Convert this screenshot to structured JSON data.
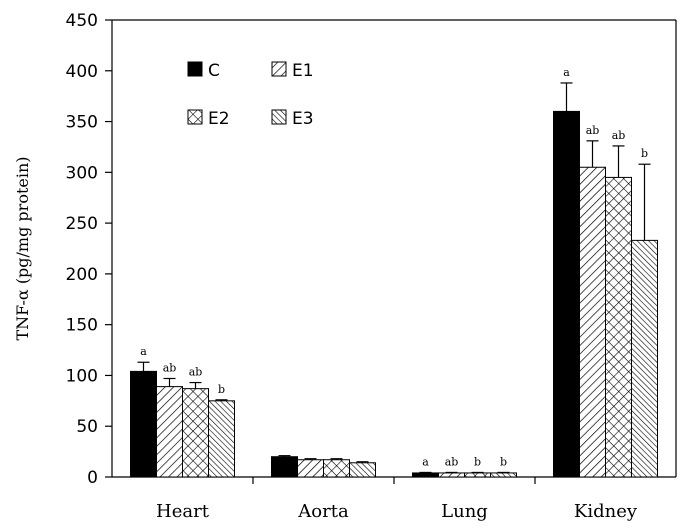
{
  "chart_data": {
    "type": "bar",
    "title": "",
    "xlabel": "",
    "ylabel": "TNF-α (pg/mg protein)",
    "ylim": [
      0,
      450
    ],
    "yticks": [
      0,
      50,
      100,
      150,
      200,
      250,
      300,
      350,
      400,
      450
    ],
    "grid": false,
    "legend_position": "top-left",
    "categories": [
      "Heart",
      "Aorta",
      "Lung",
      "Kidney"
    ],
    "series": [
      {
        "name": "C",
        "fill": "solid",
        "color": "#000000",
        "values": [
          104,
          20,
          4,
          360
        ],
        "errors": [
          9,
          1,
          0.5,
          28
        ],
        "labels": [
          "a",
          "",
          "a",
          "a"
        ]
      },
      {
        "name": "E1",
        "fill": "diagonal",
        "color": "#000000",
        "values": [
          89,
          17,
          4,
          305
        ],
        "errors": [
          8,
          1,
          0.5,
          26
        ],
        "labels": [
          "ab",
          "",
          "ab",
          "ab"
        ]
      },
      {
        "name": "E2",
        "fill": "crosshatch",
        "color": "#000000",
        "values": [
          87,
          17,
          4,
          295
        ],
        "errors": [
          6,
          1,
          0.5,
          31
        ],
        "labels": [
          "ab",
          "",
          "b",
          "ab"
        ]
      },
      {
        "name": "E3",
        "fill": "dense-diagonal",
        "color": "#000000",
        "values": [
          75,
          14,
          4,
          233
        ],
        "errors": [
          1,
          1,
          0.5,
          75
        ],
        "labels": [
          "b",
          "",
          "b",
          "b"
        ]
      }
    ]
  }
}
